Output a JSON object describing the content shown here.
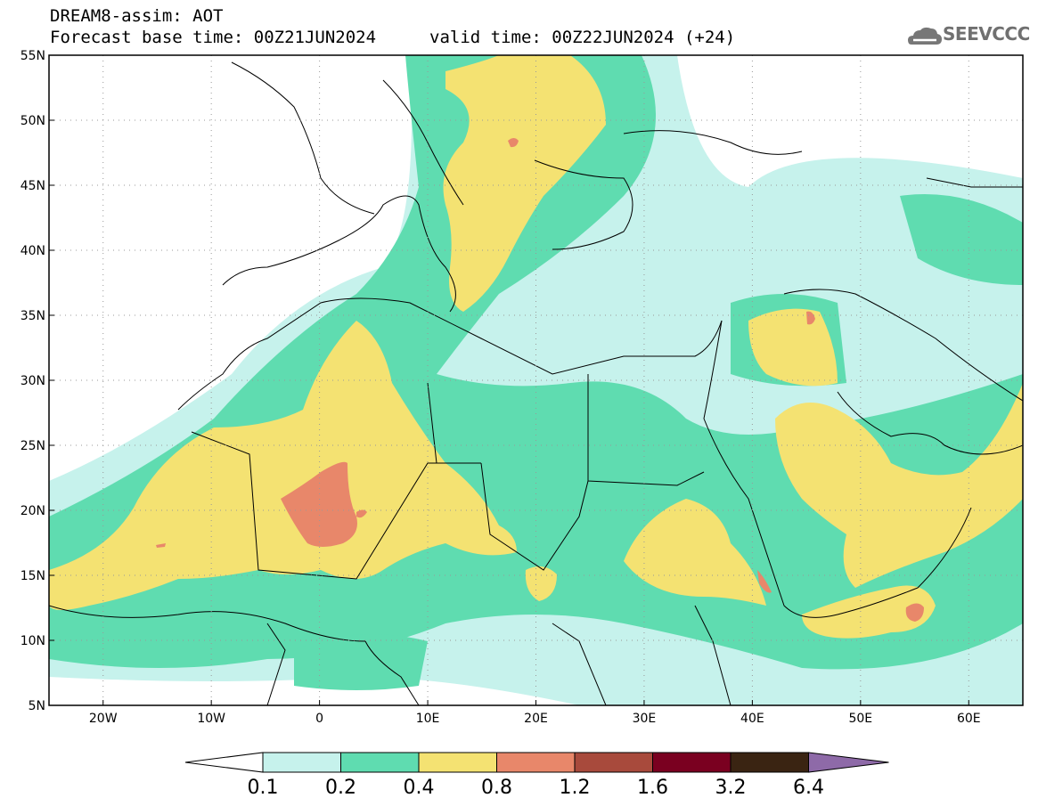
{
  "header": {
    "line1": "DREAM8-assim: AOT",
    "line2": "Forecast base time: 00Z21JUN2024",
    "valid": "valid time: 00Z22JUN2024 (+24)",
    "logo": "SEEVCCC"
  },
  "map": {
    "lat_labels": [
      "55N",
      "50N",
      "45N",
      "40N",
      "35N",
      "30N",
      "25N",
      "20N",
      "15N",
      "10N",
      "5N"
    ],
    "lon_labels": [
      "20W",
      "10W",
      "0",
      "10E",
      "20E",
      "30E",
      "40E",
      "50E",
      "60E"
    ],
    "lon_range": [
      "25W",
      "65E"
    ],
    "lat_range": [
      "5N",
      "55N"
    ],
    "grid": "dotted"
  },
  "colorbar": {
    "levels": [
      "0.1",
      "0.2",
      "0.4",
      "0.8",
      "1.2",
      "1.6",
      "3.2",
      "6.4"
    ],
    "colors": [
      "#ffffff",
      "#c6f2ec",
      "#5fdcb0",
      "#f4e272",
      "#e8876a",
      "#a84a3c",
      "#7a0020",
      "#3a2412",
      "#8e6aa8"
    ]
  },
  "colors": {
    "c1": "#c6f2ec",
    "c2": "#5fdcb0",
    "c3": "#f4e272",
    "c4": "#e8876a"
  }
}
